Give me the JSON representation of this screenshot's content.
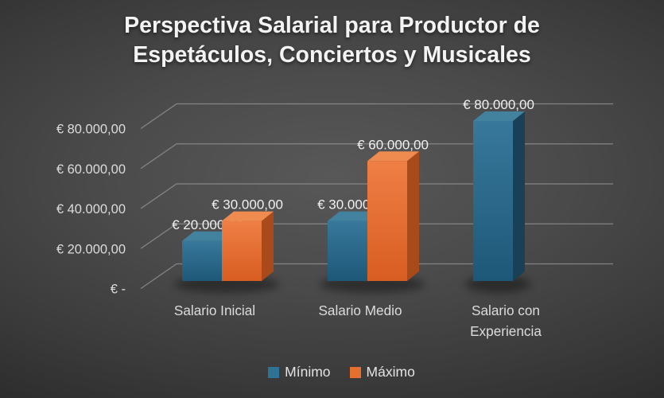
{
  "title": {
    "lines": [
      "Perspectiva Salarial para Productor de",
      "Espetáculos, Conciertos y Musicales"
    ]
  },
  "chart_data": {
    "type": "bar",
    "projection": "3d",
    "title": "Perspectiva Salarial para Productor de Espetáculos, Conciertos y Musicales",
    "categories": [
      "Salario Inicial",
      "Salario Medio",
      "Salario con Experiencia"
    ],
    "category_lines": [
      [
        "Salario Inicial"
      ],
      [
        "Salario Medio"
      ],
      [
        "Salario con",
        "Experiencia"
      ]
    ],
    "series": [
      {
        "name": "Mínimo",
        "color": "#2d7396",
        "values": [
          20000,
          30000,
          80000
        ],
        "data_labels": [
          "€ 20.000,00",
          "€ 30.000,00",
          "€ 80.000,00"
        ]
      },
      {
        "name": "Máximo",
        "color": "#e4702f",
        "values": [
          30000,
          60000,
          null
        ],
        "data_labels": [
          "€ 30.000,00",
          "€ 60.000,00",
          null
        ]
      }
    ],
    "y_axis": {
      "min": 0,
      "max": 80000,
      "tick_step": 20000,
      "tick_labels": [
        "€ -",
        "€ 20.000,00",
        "€ 40.000,00",
        "€ 60.000,00",
        "€ 80.000,00"
      ]
    },
    "legend": {
      "position": "bottom",
      "entries": [
        "Mínimo",
        "Máximo"
      ]
    },
    "grid": true,
    "xlabel": "",
    "ylabel": "",
    "colors": {
      "gridline": "#939393",
      "text": "#dcdcdc",
      "value_label_text": "#f0f0f0",
      "minimo": {
        "front_top": "#38789b",
        "front_bottom": "#1e5878",
        "top": "#43829f",
        "side": "#1a4057"
      },
      "maximo": {
        "front_top": "#ef7f45",
        "front_bottom": "#d85d22",
        "top": "#f08b4f",
        "side": "#a84a1a"
      }
    }
  }
}
